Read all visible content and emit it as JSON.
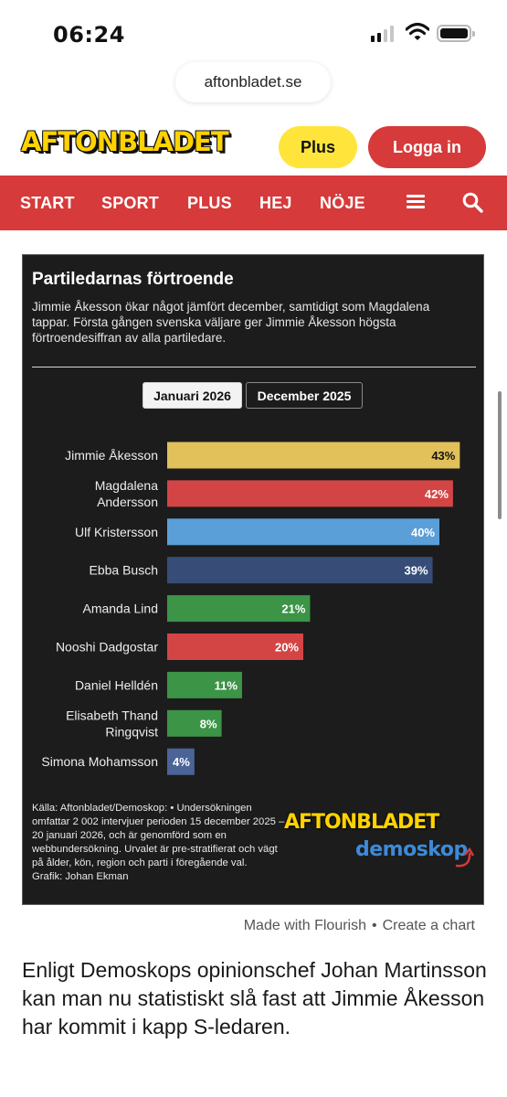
{
  "status_bar": {
    "time": "06:24"
  },
  "browser": {
    "url": "aftonbladet.se"
  },
  "header": {
    "logo": "AFTONBLADET",
    "plus_label": "Plus",
    "login_label": "Logga in"
  },
  "nav": {
    "items": [
      "START",
      "SPORT",
      "PLUS",
      "HEJ",
      "NÖJE"
    ]
  },
  "chart_card": {
    "title": "Partiledarnas förtroende",
    "subtitle": "Jimmie Åkesson ökar något jämfört december, samtidigt som Magdalena tappar. Första gången svenska väljare ger Jimmie Åkesson högsta förtroendesiffran av alla partiledare.",
    "tabs": [
      {
        "label": "Januari 2026",
        "active": true
      },
      {
        "label": "December 2025",
        "active": false
      }
    ],
    "source": "Källa: Aftonbladet/Demoskop: • Undersökningen omfattar 2 002 intervjuer perioden 15 december 2025 – 20 januari 2026, och är genomförd som en webbundersökning. Urvalet är pre-stratifierat och vägt på ålder, kön, region och parti i föregående val.",
    "credit": "Grafik: Johan Ekman",
    "brand_logo": "AFTONBLADET",
    "brand_sub": "demoskop"
  },
  "chart_data": {
    "type": "bar",
    "orientation": "horizontal",
    "categories": [
      [
        "Jimmie Åkesson"
      ],
      [
        "Magdalena",
        "Andersson"
      ],
      [
        "Ulf Kristersson"
      ],
      [
        "Ebba Busch"
      ],
      [
        "Amanda Lind"
      ],
      [
        "Nooshi Dadgostar"
      ],
      [
        "Daniel Helldén"
      ],
      [
        "Elisabeth Thand",
        "Ringqvist"
      ],
      [
        "Simona Mohamsson"
      ]
    ],
    "values": [
      43,
      42,
      40,
      39,
      21,
      20,
      11,
      8,
      4
    ],
    "value_labels": [
      "43%",
      "42%",
      "40%",
      "39%",
      "21%",
      "20%",
      "11%",
      "8%",
      "4%"
    ],
    "colors": [
      "#e2c05a",
      "#d34545",
      "#5b9fd9",
      "#374d78",
      "#3c9447",
      "#d34545",
      "#3c9447",
      "#3c9447",
      "#4b6498"
    ],
    "xlim": [
      0,
      45
    ],
    "grid": false,
    "legend": "none"
  },
  "footer": {
    "made_with": "Made with Flourish",
    "create": "Create a chart"
  },
  "article": {
    "text": "Enligt Demoskops opinionschef Johan Martinsson kan man nu statistiskt slå fast att Jimmie Åkesson har kommit i kapp S-ledaren."
  }
}
